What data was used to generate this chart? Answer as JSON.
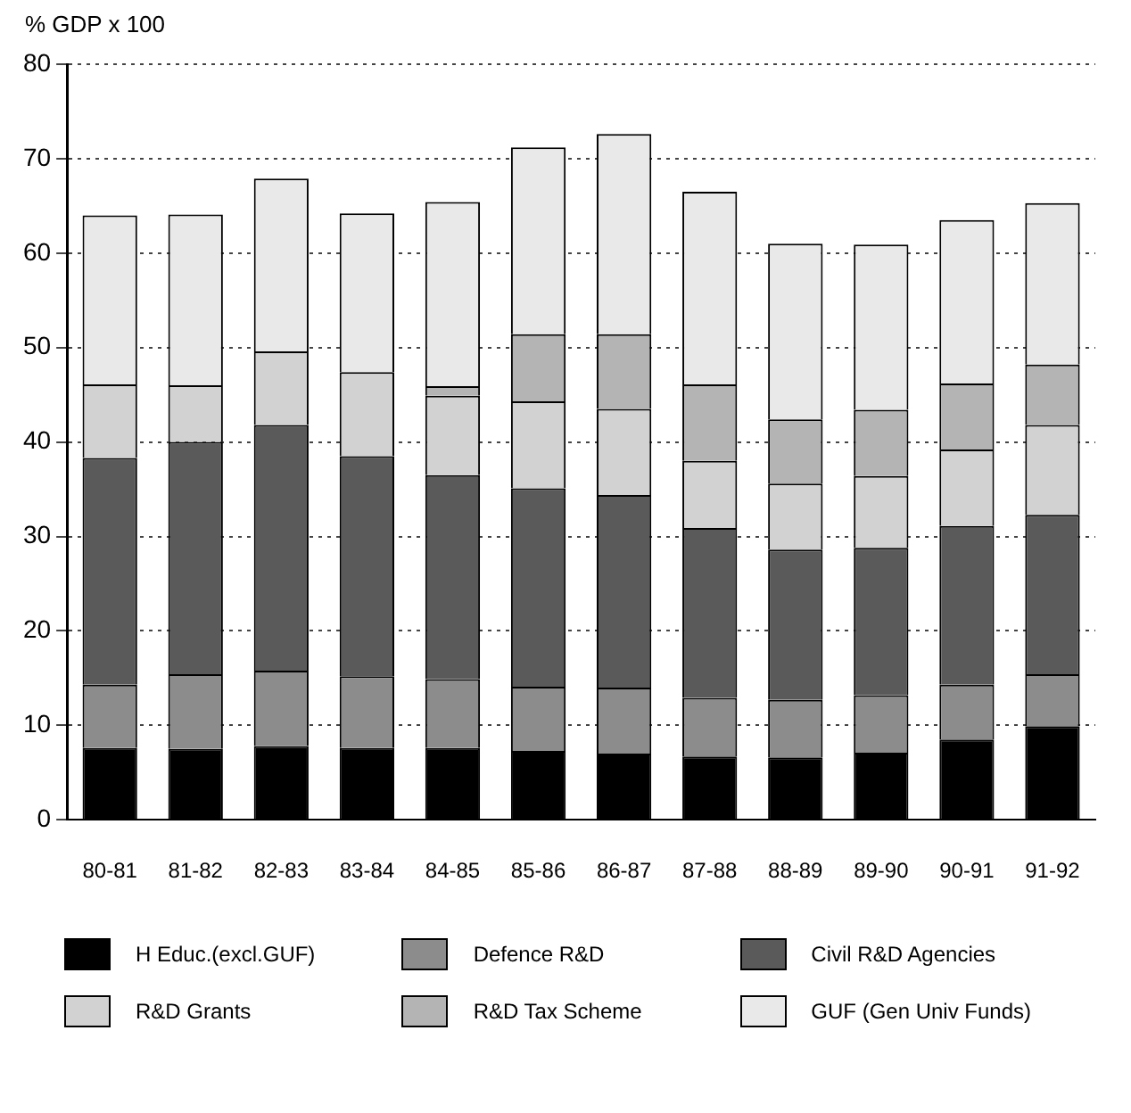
{
  "chart_data": {
    "type": "bar",
    "stacked": true,
    "ylabel": "% GDP x 100",
    "categories": [
      "80-81",
      "81-82",
      "82-83",
      "83-84",
      "84-85",
      "85-86",
      "86-87",
      "87-88",
      "88-89",
      "89-90",
      "90-91",
      "91-92"
    ],
    "series": [
      {
        "name": "H Educ.(excl.GUF)",
        "color": "#000000",
        "values": [
          7.6,
          7.5,
          7.8,
          7.6,
          7.6,
          7.3,
          7.0,
          6.7,
          6.6,
          7.1,
          8.5,
          9.9
        ]
      },
      {
        "name": "Defence R&D",
        "color": "#8c8c8c",
        "values": [
          6.7,
          7.9,
          8.0,
          7.6,
          7.3,
          6.8,
          7.0,
          6.2,
          6.1,
          6.1,
          5.8,
          5.5
        ]
      },
      {
        "name": "Civil R&D Agencies",
        "color": "#5a5a5a",
        "values": [
          24.0,
          24.6,
          26.0,
          23.3,
          21.6,
          21.0,
          20.4,
          18.0,
          15.9,
          15.6,
          16.8,
          16.9
        ]
      },
      {
        "name": "R&D Grants",
        "color": "#d2d2d2",
        "values": [
          7.8,
          6.0,
          7.8,
          8.9,
          8.4,
          9.2,
          9.1,
          7.1,
          7.0,
          7.6,
          8.1,
          9.5
        ]
      },
      {
        "name": "R&D Tax Scheme",
        "color": "#b4b4b4",
        "values": [
          0,
          0,
          0,
          0,
          1.0,
          7.1,
          7.9,
          8.1,
          6.8,
          7.0,
          7.0,
          6.4
        ]
      },
      {
        "name": "GUF (Gen Univ Funds)",
        "color": "#e9e9e9",
        "values": [
          17.9,
          18.1,
          18.3,
          16.8,
          19.5,
          19.8,
          21.2,
          20.4,
          18.6,
          17.5,
          17.3,
          17.1
        ]
      }
    ],
    "ylim": [
      0,
      80
    ],
    "yticks": [
      0,
      10,
      20,
      30,
      40,
      50,
      60,
      70,
      80
    ],
    "grid": "y",
    "legend": "bottom"
  }
}
